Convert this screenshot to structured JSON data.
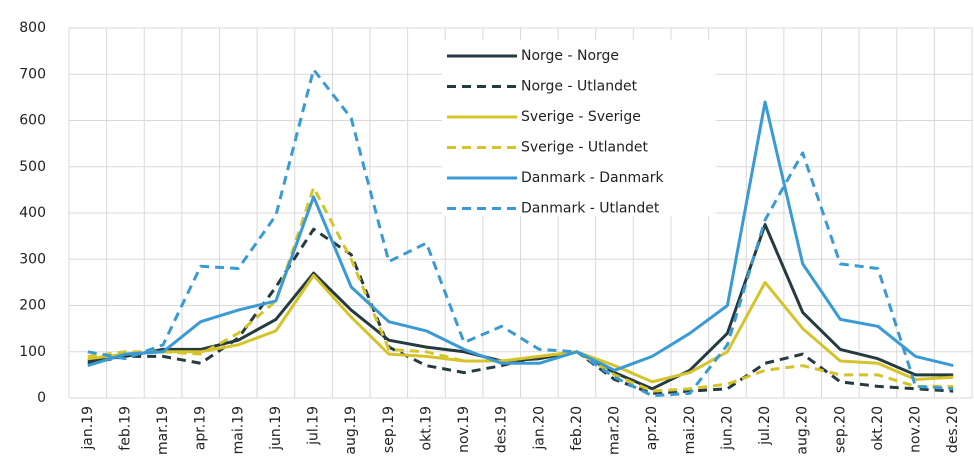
{
  "chart_data": {
    "type": "line",
    "categories": [
      "jan.19",
      "feb.19",
      "mar.19",
      "apr.19",
      "mai.19",
      "jun.19",
      "jul.19",
      "aug.19",
      "sep.19",
      "okt.19",
      "nov.19",
      "des.19",
      "jan.20",
      "feb.20",
      "mar.20",
      "apr.20",
      "mai.20",
      "jun.20",
      "jul.20",
      "aug.20",
      "sep.20",
      "okt.20",
      "nov.20",
      "des.20"
    ],
    "series": [
      {
        "name": "Norge - Norge",
        "color": "#263b40",
        "dash": false,
        "values": [
          80,
          90,
          105,
          105,
          125,
          170,
          270,
          190,
          125,
          110,
          100,
          80,
          85,
          100,
          55,
          20,
          60,
          140,
          375,
          185,
          105,
          85,
          50,
          50
        ]
      },
      {
        "name": "Norge - Utlandet",
        "color": "#263b40",
        "dash": true,
        "values": [
          75,
          90,
          90,
          75,
          130,
          240,
          365,
          310,
          110,
          70,
          55,
          70,
          90,
          100,
          40,
          10,
          15,
          20,
          75,
          95,
          35,
          25,
          20,
          15
        ]
      },
      {
        "name": "Sverige - Sverige",
        "color": "#d4c42a",
        "dash": false,
        "values": [
          85,
          95,
          100,
          100,
          115,
          145,
          265,
          175,
          95,
          90,
          80,
          80,
          90,
          100,
          70,
          35,
          55,
          100,
          250,
          150,
          80,
          75,
          40,
          45
        ]
      },
      {
        "name": "Sverige - Utlandet",
        "color": "#d4c42a",
        "dash": true,
        "values": [
          90,
          100,
          100,
          95,
          140,
          210,
          455,
          300,
          105,
          100,
          80,
          80,
          90,
          100,
          50,
          15,
          20,
          30,
          60,
          70,
          50,
          50,
          25,
          25
        ]
      },
      {
        "name": "Danmark - Danmark",
        "color": "#3a9ad4",
        "dash": false,
        "values": [
          70,
          95,
          100,
          165,
          190,
          210,
          435,
          240,
          165,
          145,
          105,
          75,
          75,
          100,
          60,
          90,
          140,
          200,
          640,
          290,
          170,
          155,
          90,
          70
        ]
      },
      {
        "name": "Danmark - Utlandet",
        "color": "#3a9ad4",
        "dash": true,
        "values": [
          100,
          85,
          115,
          285,
          280,
          395,
          710,
          605,
          295,
          335,
          120,
          155,
          105,
          100,
          45,
          5,
          10,
          115,
          385,
          530,
          290,
          280,
          25,
          20
        ]
      }
    ],
    "ylim": [
      0,
      800
    ],
    "yticks": [
      0,
      100,
      200,
      300,
      400,
      500,
      600,
      700,
      800
    ],
    "grid": true
  }
}
